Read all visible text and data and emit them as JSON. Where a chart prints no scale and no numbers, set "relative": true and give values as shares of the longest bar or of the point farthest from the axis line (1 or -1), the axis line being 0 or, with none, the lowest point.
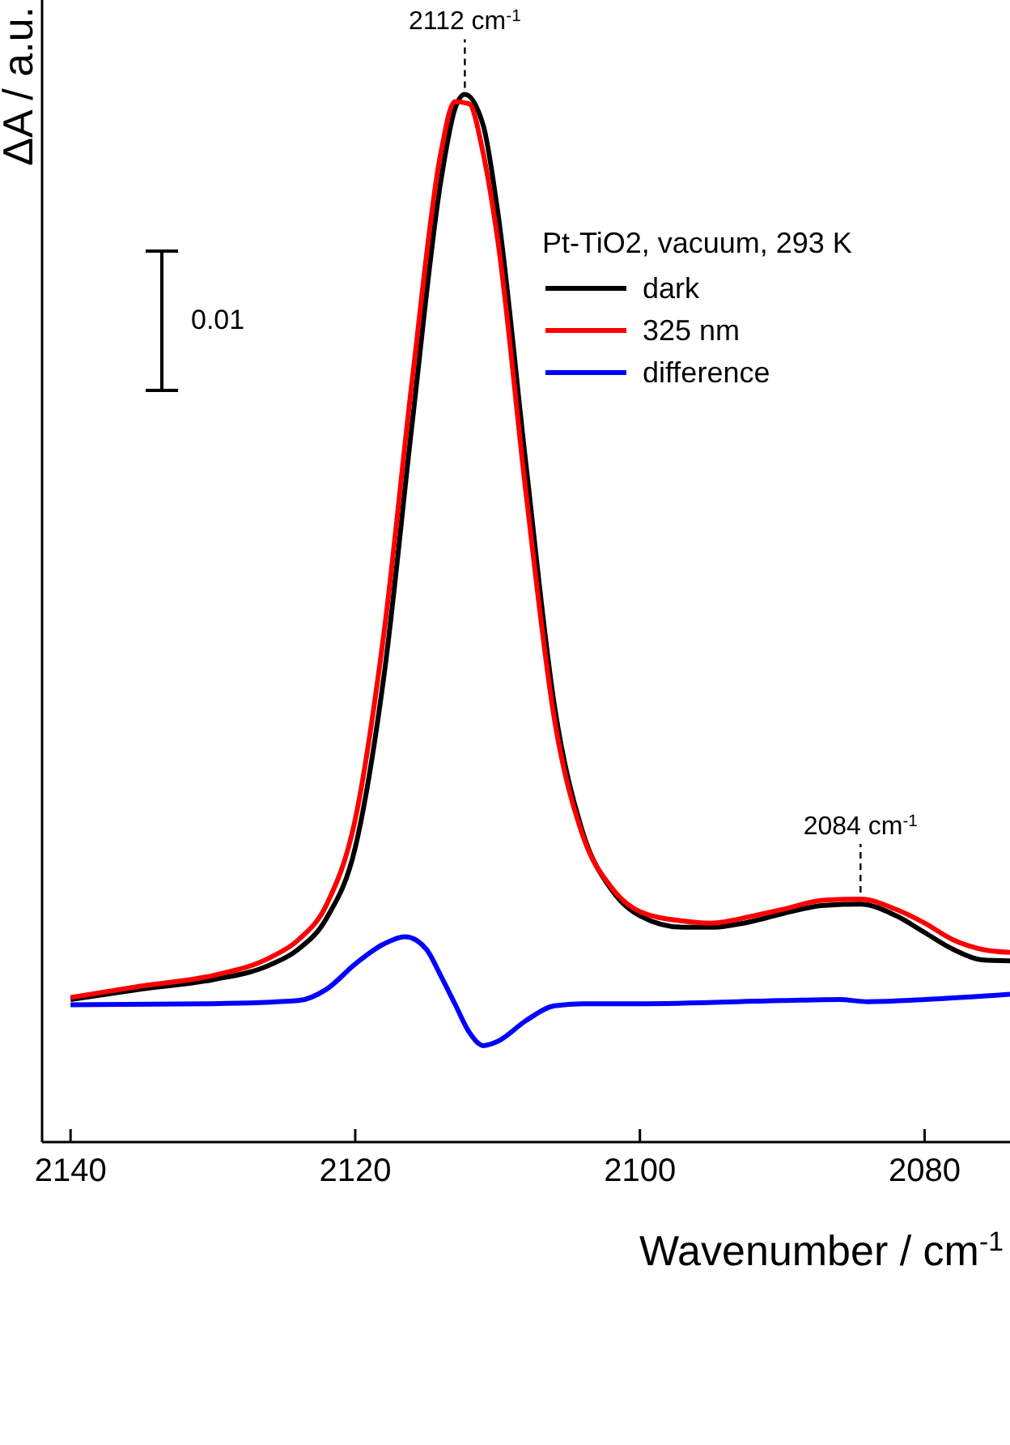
{
  "chart_data": {
    "type": "line",
    "relative": true,
    "ylabel": "ΔA / a.u.",
    "xlabel": "Wavenumber / cm$^{-1}$",
    "legend_title": "Pt-TiO2, vacuum, 293 K",
    "legend": "top right",
    "grid": false,
    "tick_labels": "x",
    "line_style": "solid",
    "xlim": [
      2142,
      2074
    ],
    "xticks": [
      2140,
      2120,
      2100,
      2080
    ],
    "annotations": [
      {
        "text": "2112 cm$^{-1}$",
        "x": 2112.3,
        "y": 1.0
      },
      {
        "text": "2084 cm$^{-1}$",
        "x": 2084.5,
        "y": 0.232
      },
      "0.01"
    ],
    "series": [
      {
        "name": "dark",
        "color": "#000000",
        "x": [
          2140,
          2135,
          2130,
          2126,
          2124,
          2122,
          2120,
          2118,
          2116,
          2114,
          2113,
          2112.3,
          2111,
          2110,
          2108,
          2106,
          2104,
          2102,
          2100,
          2097,
          2095,
          2092,
          2090,
          2087,
          2084.5,
          2082,
          2080,
          2078,
          2076,
          2074
        ],
        "values": [
          0.136,
          0.146,
          0.155,
          0.169,
          0.184,
          0.214,
          0.281,
          0.443,
          0.686,
          0.916,
          0.986,
          1.0,
          0.97,
          0.889,
          0.646,
          0.416,
          0.295,
          0.241,
          0.216,
          0.205,
          0.205,
          0.211,
          0.218,
          0.226,
          0.227,
          0.216,
          0.2,
          0.184,
          0.174,
          0.173
        ]
      },
      {
        "name": "325 nm",
        "color": "#ff0000",
        "x": [
          2140,
          2135,
          2130,
          2126,
          2124,
          2122,
          2120,
          2118,
          2116,
          2114,
          2113,
          2112,
          2111,
          2110,
          2108,
          2106,
          2104,
          2102,
          2100,
          2097,
          2095,
          2092,
          2090,
          2087,
          2084.5,
          2082,
          2080,
          2078,
          2076,
          2074
        ],
        "values": [
          0.138,
          0.149,
          0.159,
          0.176,
          0.193,
          0.227,
          0.308,
          0.484,
          0.727,
          0.943,
          0.993,
          0.991,
          0.943,
          0.862,
          0.619,
          0.403,
          0.292,
          0.243,
          0.22,
          0.211,
          0.209,
          0.216,
          0.222,
          0.231,
          0.232,
          0.222,
          0.209,
          0.193,
          0.184,
          0.181
        ]
      },
      {
        "name": "difference",
        "color": "#0000ff",
        "x": [
          2140,
          2130,
          2124,
          2122,
          2120,
          2118,
          2116.5,
          2115,
          2114,
          2113,
          2112,
          2111,
          2110,
          2108,
          2106,
          2104,
          2100,
          2090,
          2086,
          2084,
          2080,
          2074
        ],
        "values": [
          0.131,
          0.132,
          0.135,
          0.146,
          0.17,
          0.189,
          0.196,
          0.184,
          0.159,
          0.132,
          0.105,
          0.092,
          0.096,
          0.116,
          0.13,
          0.132,
          0.132,
          0.135,
          0.136,
          0.134,
          0.136,
          0.141
        ]
      }
    ]
  }
}
